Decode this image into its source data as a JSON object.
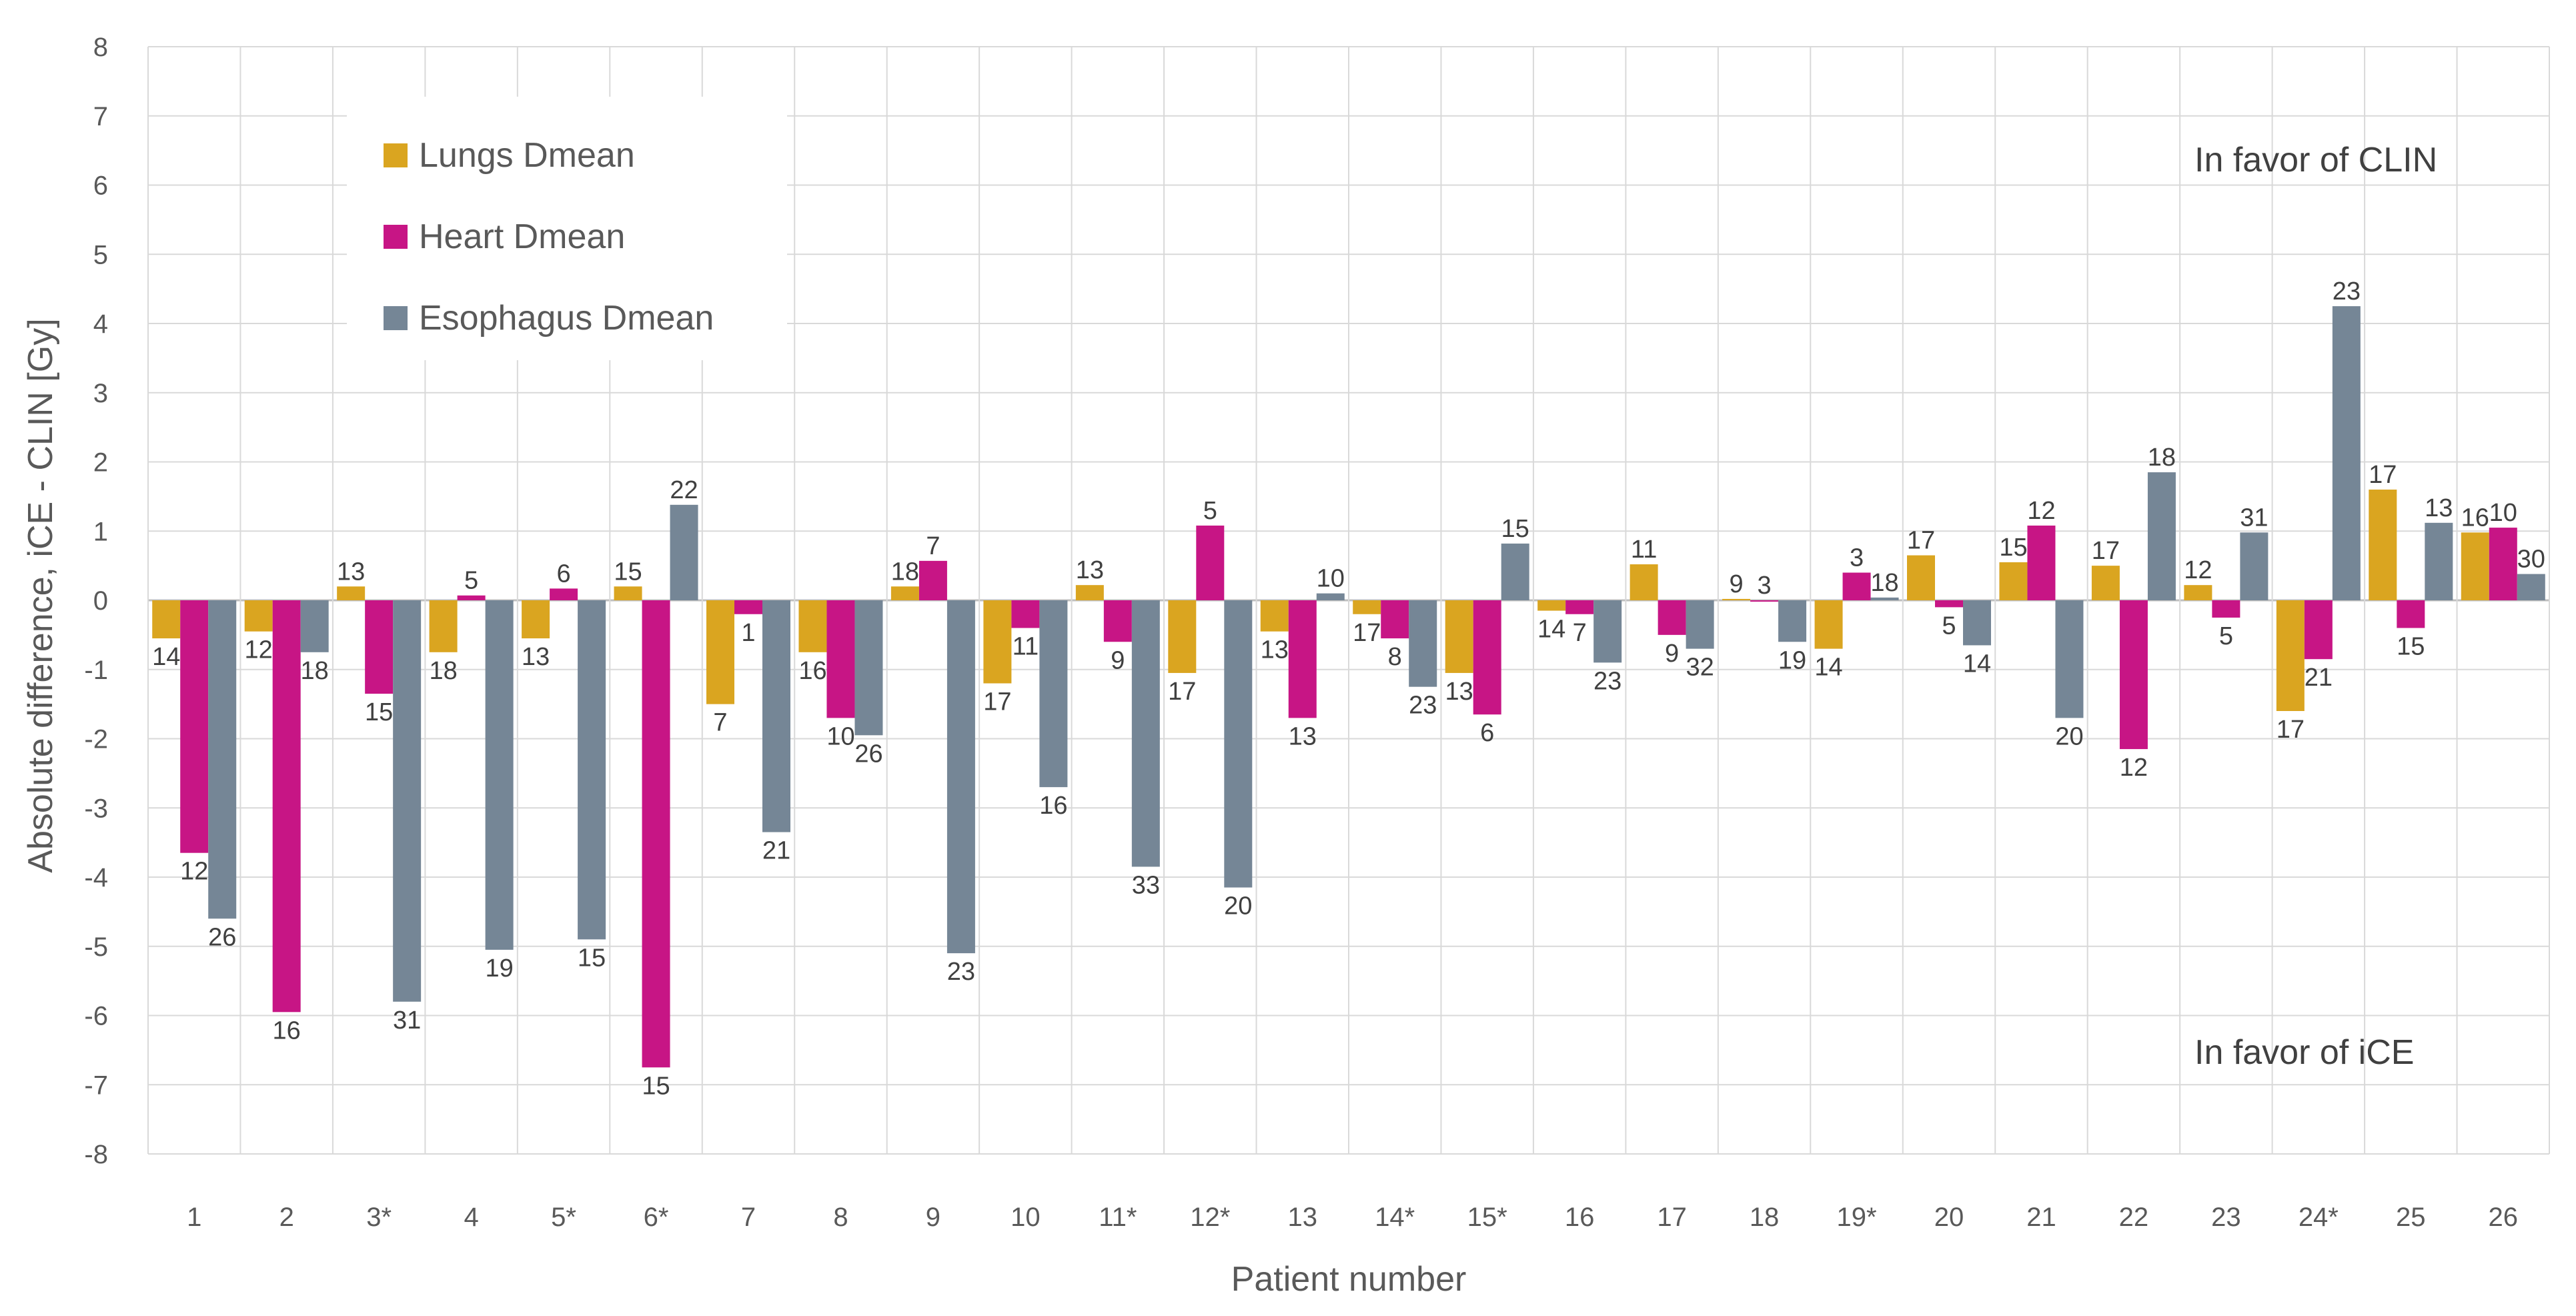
{
  "chart_data": {
    "type": "bar",
    "title": "",
    "xlabel": "Patient number",
    "ylabel": "Absolute difference, iCE - CLIN [Gy]",
    "ylim": [
      -8,
      8
    ],
    "yticks": [
      -8,
      -7,
      -6,
      -5,
      -4,
      -3,
      -2,
      -1,
      0,
      1,
      2,
      3,
      4,
      5,
      6,
      7,
      8
    ],
    "grid": true,
    "legend_position": "top-left",
    "categories": [
      "1",
      "2",
      "3*",
      "4",
      "5*",
      "6*",
      "7",
      "8",
      "9",
      "10",
      "11*",
      "12*",
      "13",
      "14*",
      "15*",
      "16",
      "17",
      "18",
      "19*",
      "20",
      "21",
      "22",
      "23",
      "24*",
      "25",
      "26"
    ],
    "series": [
      {
        "name": "Lungs Dmean",
        "color": "#DAA520",
        "values": [
          -0.55,
          -0.45,
          0.2,
          -0.75,
          -0.55,
          0.2,
          -1.5,
          -0.75,
          0.2,
          -1.2,
          0.22,
          -1.05,
          -0.45,
          -0.2,
          -1.05,
          -0.15,
          0.52,
          0.02,
          -0.7,
          0.65,
          0.55,
          0.5,
          0.22,
          -1.6,
          1.6,
          0.98
        ],
        "labels": [
          "14",
          "12",
          "13",
          "18",
          "13",
          "15",
          "7",
          "16",
          "18",
          "17",
          "13",
          "17",
          "13",
          "17",
          "13",
          "14",
          "11",
          "9",
          "14",
          "17",
          "15",
          "17",
          "12",
          "17",
          "17",
          "16"
        ]
      },
      {
        "name": "Heart Dmean",
        "color": "#C71585",
        "values": [
          -3.65,
          -5.95,
          -1.35,
          0.07,
          0.17,
          -6.75,
          -0.2,
          -1.7,
          0.57,
          -0.4,
          -0.6,
          1.08,
          -1.7,
          -0.55,
          -1.65,
          -0.2,
          -0.5,
          0.0,
          0.4,
          -0.1,
          1.08,
          -2.15,
          -0.25,
          -0.85,
          -0.4,
          1.05
        ],
        "labels": [
          "12",
          "16",
          "15",
          "5",
          "6",
          "15",
          "1",
          "10",
          "7",
          "11",
          "9",
          "5",
          "13",
          "8",
          "6",
          "7",
          "9",
          "3",
          "3",
          "5",
          "12",
          "12",
          "5",
          "21",
          "15",
          "10"
        ]
      },
      {
        "name": "Esophagus Dmean",
        "color": "#758696",
        "values": [
          -4.6,
          -0.75,
          -5.8,
          -5.05,
          -4.9,
          1.38,
          -3.35,
          -1.95,
          -5.1,
          -2.7,
          -3.85,
          -4.15,
          0.1,
          -1.25,
          0.82,
          -0.9,
          -0.7,
          -0.6,
          0.04,
          -0.65,
          -1.7,
          1.85,
          0.98,
          4.25,
          1.12,
          0.38
        ],
        "labels": [
          "26",
          "18",
          "31",
          "19",
          "15",
          "22",
          "21",
          "26",
          "23",
          "16",
          "33",
          "20",
          "10",
          "23",
          "15",
          "23",
          "32",
          "19",
          "18",
          "14",
          "20",
          "18",
          "31",
          "23",
          "13",
          "30"
        ]
      }
    ],
    "annotations": [
      "In favor of CLIN",
      "In favor of iCE"
    ]
  }
}
